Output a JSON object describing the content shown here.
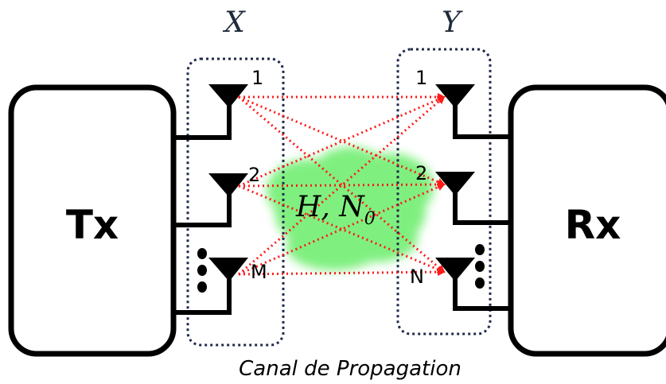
{
  "tx": {
    "label": "Tx"
  },
  "rx": {
    "label": "Rx"
  },
  "tx_array": {
    "label": "X",
    "antennas": [
      {
        "label": "1"
      },
      {
        "label": "2"
      },
      {
        "label": "M"
      }
    ]
  },
  "rx_array": {
    "label": "Y",
    "antennas": [
      {
        "label": "1"
      },
      {
        "label": "2"
      },
      {
        "label": "N"
      }
    ]
  },
  "channel": {
    "h_label": "H, N",
    "subscript": "0",
    "caption": "Canal de Propagation"
  },
  "colors": {
    "rays": "#ff1a1a",
    "cloud": "#7ff07f",
    "array_outline": "#1f2a4a",
    "boxes": "#000000"
  }
}
